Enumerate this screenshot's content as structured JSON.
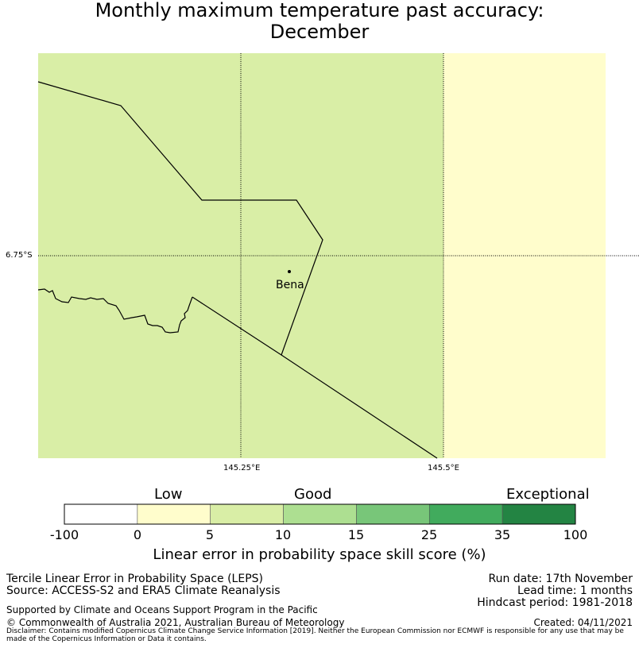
{
  "title": {
    "line1": "Monthly maximum temperature past accuracy:",
    "line2": "December"
  },
  "map": {
    "lat_label": "6.75°S",
    "lon_labels": [
      "145.25°E",
      "145.5°E"
    ],
    "place_name": "Bena",
    "region_colors": {
      "good": "#d9eea6",
      "low": "#fffdcc"
    }
  },
  "colorbar": {
    "categories": [
      "Low",
      "Good",
      "Exceptional"
    ],
    "tick_labels": [
      "-100",
      "0",
      "5",
      "10",
      "15",
      "25",
      "35",
      "100"
    ],
    "segment_colors": [
      "#ffffff",
      "#fffdcc",
      "#d9eea6",
      "#addf91",
      "#78c679",
      "#41ab5d",
      "#238443"
    ],
    "label": "Linear error in probability space skill score (%)"
  },
  "info_left": {
    "line1": "Tercile Linear Error in Probability Space (LEPS)",
    "line2": "Source: ACCESS-S2 and ERA5 Climate Reanalysis",
    "support": "Supported by Climate and Oceans Support Program in the Pacific",
    "copyright": "© Commonwealth of Australia 2021, Australian Bureau of Meteorology"
  },
  "info_right": {
    "run_date": "Run date: 17th November",
    "lead_time": "Lead time: 1 months",
    "hindcast": "Hindcast period: 1981-2018",
    "created": "Created: 04/11/2021"
  },
  "disclaimer": "Disclaimer: Contains modified Copernicus Climate Change Service Information [2019]. Neither the European Commission nor ECMWF is responsible for any use that may be made of the Copernicus Information or Data it contains."
}
